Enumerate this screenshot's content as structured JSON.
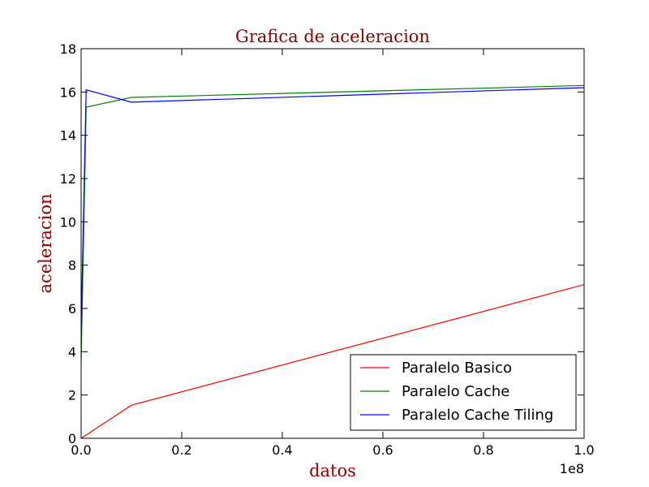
{
  "chart_data": {
    "type": "line",
    "title": "Grafica de aceleracion",
    "xlabel": "datos",
    "ylabel": "aceleracion",
    "x_offset_label": "1e8",
    "xlim": [
      0,
      1.0
    ],
    "ylim": [
      0,
      18
    ],
    "xticks": [
      0.0,
      0.2,
      0.4,
      0.6,
      0.8,
      1.0
    ],
    "xtick_labels": [
      "0.0",
      "0.2",
      "0.4",
      "0.6",
      "0.8",
      "1.0"
    ],
    "yticks": [
      0,
      2,
      4,
      6,
      8,
      10,
      12,
      14,
      16,
      18
    ],
    "ytick_labels": [
      "0",
      "2",
      "4",
      "6",
      "8",
      "10",
      "12",
      "14",
      "16",
      "18"
    ],
    "grid": false,
    "legend_position": "lower-right",
    "label_color": "#8b0000",
    "series": [
      {
        "name": "Paralelo Basico",
        "color": "#ff0000",
        "x": [
          0.0,
          0.01,
          0.1,
          1.0
        ],
        "y": [
          0.0,
          0.15,
          1.53,
          7.1
        ]
      },
      {
        "name": "Paralelo Cache",
        "color": "#008000",
        "x": [
          0.0,
          0.01,
          0.1,
          1.0
        ],
        "y": [
          3.5,
          15.3,
          15.75,
          16.3
        ]
      },
      {
        "name": "Paralelo Cache Tiling",
        "color": "#0000ff",
        "x": [
          0.0,
          0.01,
          0.1,
          1.0
        ],
        "y": [
          5.0,
          16.1,
          15.53,
          16.2
        ]
      }
    ]
  }
}
